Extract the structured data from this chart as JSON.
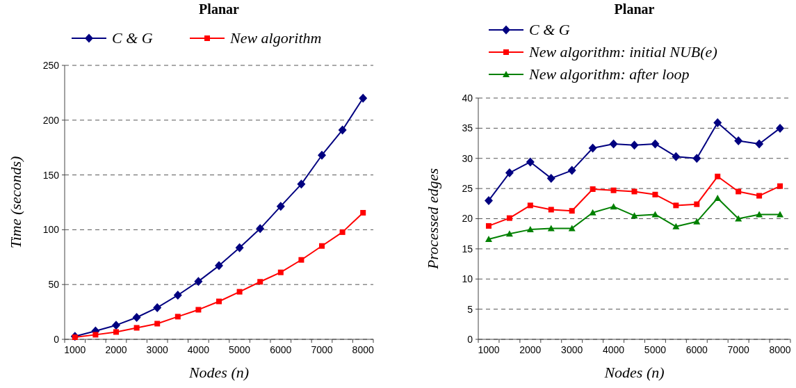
{
  "chart_data": [
    {
      "type": "line",
      "title": "Planar",
      "xlabel": "Nodes (n)",
      "ylabel": "Time (seconds)",
      "categories": [
        "1000",
        null,
        "2000",
        null,
        "3000",
        null,
        "4000",
        null,
        "5000",
        null,
        "6000",
        null,
        "7000",
        null,
        "8000"
      ],
      "ylim": [
        0,
        250
      ],
      "yticks": [
        0,
        50,
        100,
        150,
        200,
        250
      ],
      "grid": "y",
      "legend": "top",
      "line_style": "solid",
      "series": [
        {
          "name": "C & G",
          "color": "#000080",
          "marker": "diamond",
          "values": [
            2.7,
            7.6,
            12.9,
            20,
            28.9,
            40.3,
            52.9,
            67.2,
            83.6,
            101,
            121.4,
            141.6,
            168,
            191,
            220
          ]
        },
        {
          "name": "New algorithm",
          "color": "#ff0000",
          "marker": "square",
          "values": [
            1.9,
            4.2,
            6.7,
            10.5,
            14.3,
            20.7,
            27,
            34.6,
            43.4,
            52.5,
            61.1,
            72.5,
            85.2,
            97.8,
            115.5
          ]
        }
      ]
    },
    {
      "type": "line",
      "title": "Planar",
      "xlabel": "Nodes (n)",
      "ylabel": "Processed edges",
      "categories": [
        "1000",
        null,
        "2000",
        null,
        "3000",
        null,
        "4000",
        null,
        "5000",
        null,
        "6000",
        null,
        "7000",
        null,
        "8000"
      ],
      "ylim": [
        0,
        40
      ],
      "yticks": [
        0,
        5,
        10,
        15,
        20,
        25,
        30,
        35,
        40
      ],
      "grid": "y",
      "legend": "top",
      "line_style": "solid",
      "series": [
        {
          "name": "C & G",
          "color": "#000080",
          "marker": "diamond",
          "values": [
            23,
            27.6,
            29.4,
            26.7,
            28,
            31.7,
            32.4,
            32.2,
            32.4,
            30.3,
            30,
            35.9,
            32.9,
            32.4,
            35
          ]
        },
        {
          "name": "New algorithm: initial NUB(e)",
          "color": "#ff0000",
          "marker": "square",
          "values": [
            18.8,
            20.1,
            22.2,
            21.5,
            21.3,
            24.9,
            24.7,
            24.5,
            24,
            22.2,
            22.4,
            27,
            24.5,
            23.8,
            25.4
          ]
        },
        {
          "name": "New algorithm: after loop",
          "color": "#008000",
          "marker": "triangle",
          "values": [
            16.6,
            17.5,
            18.2,
            18.4,
            18.4,
            21,
            22,
            20.5,
            20.7,
            18.7,
            19.5,
            23.4,
            20,
            20.7,
            20.7
          ]
        }
      ]
    }
  ]
}
